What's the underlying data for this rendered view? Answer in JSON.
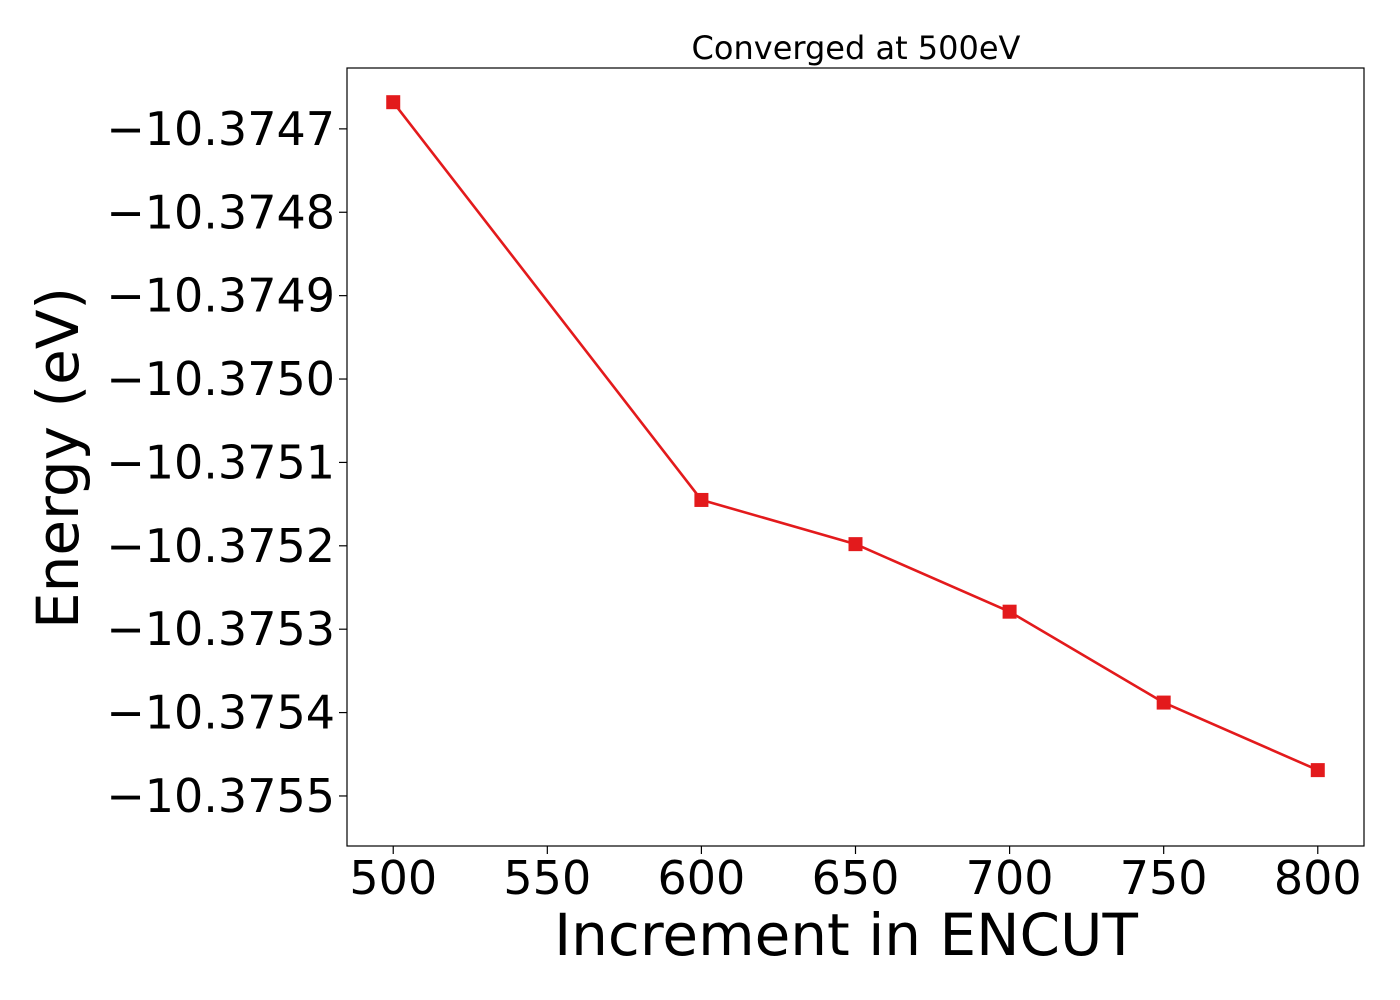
{
  "chart_data": {
    "type": "line",
    "title": "Converged at 500eV",
    "xlabel": "Increment in ENCUT",
    "ylabel": "Energy (eV)",
    "x": [
      500,
      600,
      650,
      700,
      750,
      800
    ],
    "series": [
      {
        "values": [
          -10.374668,
          -10.375145,
          -10.375198,
          -10.375279,
          -10.375388,
          -10.375469
        ],
        "color": "#e31a1c",
        "marker": "square"
      }
    ],
    "xlim": [
      485,
      815
    ],
    "ylim": [
      -10.37556,
      -10.374627
    ],
    "xticks": [
      500,
      550,
      600,
      650,
      700,
      750,
      800
    ],
    "xtick_labels": [
      "500",
      "550",
      "600",
      "650",
      "700",
      "750",
      "800"
    ],
    "yticks": [
      -10.3747,
      -10.3748,
      -10.3749,
      -10.375,
      -10.3751,
      -10.3752,
      -10.3753,
      -10.3754,
      -10.3755
    ],
    "ytick_labels": [
      "−10.3747",
      "−10.3748",
      "−10.3749",
      "−10.3750",
      "−10.3751",
      "−10.3752",
      "−10.3753",
      "−10.3754",
      "−10.3755"
    ],
    "grid": false,
    "legend": "none"
  }
}
